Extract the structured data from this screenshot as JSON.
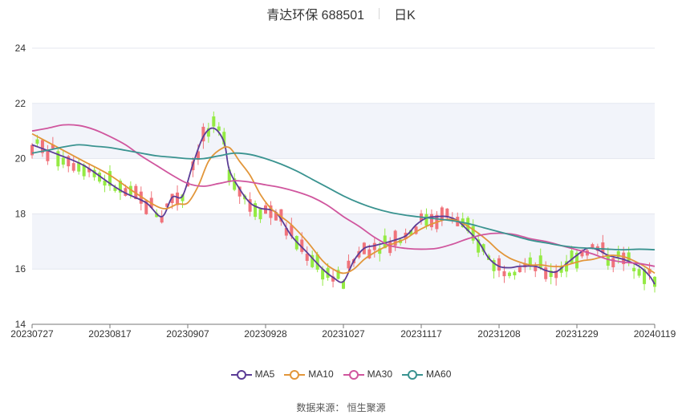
{
  "header": {
    "title": "青达环保 688501",
    "period": "日K"
  },
  "source": {
    "label": "数据来源：",
    "name": "恒生聚源"
  },
  "chart_data": {
    "type": "candlestick",
    "ylim": [
      14,
      24
    ],
    "yticks": [
      14,
      16,
      18,
      20,
      22,
      24
    ],
    "x_tick_labels": [
      "20230727",
      "20230817",
      "20230907",
      "20230928",
      "20231027",
      "20231117",
      "20231208",
      "20231229",
      "20240119"
    ],
    "x_tick_index": [
      0,
      15,
      30,
      45,
      60,
      75,
      90,
      105,
      120
    ],
    "candle_count": 121,
    "colors": {
      "up": "#f0737b",
      "down": "#94ea43"
    },
    "series": [
      {
        "name": "MA5",
        "color": "#5b3c96",
        "points": [
          [
            0,
            20.5
          ],
          [
            5,
            20.15
          ],
          [
            10,
            19.75
          ],
          [
            15,
            19.1
          ],
          [
            18,
            18.75
          ],
          [
            22,
            18.4
          ],
          [
            25,
            17.9
          ],
          [
            27,
            18.6
          ],
          [
            29,
            18.65
          ],
          [
            31,
            19.8
          ],
          [
            33,
            20.8
          ],
          [
            35,
            21.1
          ],
          [
            37,
            20.6
          ],
          [
            38,
            19.6
          ],
          [
            40,
            18.9
          ],
          [
            42,
            18.4
          ],
          [
            44,
            18.2
          ],
          [
            47,
            18.05
          ],
          [
            50,
            17.2
          ],
          [
            53,
            16.6
          ],
          [
            56,
            16.0
          ],
          [
            58,
            15.7
          ],
          [
            60,
            15.55
          ],
          [
            62,
            16.3
          ],
          [
            64,
            16.75
          ],
          [
            66,
            16.85
          ],
          [
            69,
            17.0
          ],
          [
            72,
            17.2
          ],
          [
            74,
            17.6
          ],
          [
            76,
            17.85
          ],
          [
            78,
            17.9
          ],
          [
            80,
            17.9
          ],
          [
            82,
            17.75
          ],
          [
            84,
            17.4
          ],
          [
            86,
            17.0
          ],
          [
            88,
            16.4
          ],
          [
            90,
            16.1
          ],
          [
            92,
            16.05
          ],
          [
            94,
            16.1
          ],
          [
            97,
            16.1
          ],
          [
            99,
            15.95
          ],
          [
            101,
            15.9
          ],
          [
            103,
            16.2
          ],
          [
            105,
            16.5
          ],
          [
            107,
            16.75
          ],
          [
            109,
            16.7
          ],
          [
            111,
            16.5
          ],
          [
            114,
            16.35
          ],
          [
            117,
            16.1
          ],
          [
            119,
            15.75
          ],
          [
            120,
            15.45
          ]
        ]
      },
      {
        "name": "MA10",
        "color": "#e2963a",
        "points": [
          [
            0,
            20.9
          ],
          [
            5,
            20.4
          ],
          [
            10,
            19.9
          ],
          [
            15,
            19.4
          ],
          [
            20,
            18.75
          ],
          [
            25,
            18.2
          ],
          [
            28,
            18.35
          ],
          [
            30,
            18.4
          ],
          [
            32,
            19.0
          ],
          [
            34,
            19.9
          ],
          [
            36,
            20.3
          ],
          [
            38,
            20.4
          ],
          [
            40,
            19.9
          ],
          [
            42,
            19.4
          ],
          [
            44,
            18.7
          ],
          [
            46,
            18.2
          ],
          [
            48,
            17.9
          ],
          [
            50,
            17.6
          ],
          [
            53,
            17.0
          ],
          [
            56,
            16.3
          ],
          [
            58,
            16.0
          ],
          [
            60,
            15.85
          ],
          [
            62,
            16.0
          ],
          [
            64,
            16.35
          ],
          [
            66,
            16.6
          ],
          [
            68,
            16.8
          ],
          [
            70,
            16.95
          ],
          [
            72,
            17.1
          ],
          [
            74,
            17.35
          ],
          [
            76,
            17.55
          ],
          [
            78,
            17.7
          ],
          [
            80,
            17.8
          ],
          [
            82,
            17.75
          ],
          [
            84,
            17.55
          ],
          [
            86,
            17.3
          ],
          [
            88,
            17.0
          ],
          [
            90,
            16.65
          ],
          [
            92,
            16.4
          ],
          [
            94,
            16.25
          ],
          [
            96,
            16.15
          ],
          [
            98,
            16.15
          ],
          [
            100,
            16.1
          ],
          [
            102,
            16.1
          ],
          [
            104,
            16.2
          ],
          [
            106,
            16.3
          ],
          [
            108,
            16.35
          ],
          [
            110,
            16.45
          ],
          [
            112,
            16.5
          ],
          [
            114,
            16.45
          ],
          [
            116,
            16.3
          ],
          [
            118,
            16.1
          ],
          [
            120,
            15.85
          ]
        ]
      },
      {
        "name": "MA30",
        "color": "#d0569e",
        "points": [
          [
            0,
            21.0
          ],
          [
            3,
            21.1
          ],
          [
            6,
            21.22
          ],
          [
            9,
            21.2
          ],
          [
            12,
            21.05
          ],
          [
            15,
            20.8
          ],
          [
            18,
            20.5
          ],
          [
            21,
            20.1
          ],
          [
            24,
            19.75
          ],
          [
            27,
            19.4
          ],
          [
            30,
            19.1
          ],
          [
            33,
            19.0
          ],
          [
            36,
            19.1
          ],
          [
            39,
            19.2
          ],
          [
            42,
            19.15
          ],
          [
            45,
            19.05
          ],
          [
            48,
            18.95
          ],
          [
            51,
            18.8
          ],
          [
            54,
            18.6
          ],
          [
            57,
            18.3
          ],
          [
            60,
            17.9
          ],
          [
            63,
            17.55
          ],
          [
            66,
            17.15
          ],
          [
            69,
            16.85
          ],
          [
            72,
            16.75
          ],
          [
            75,
            16.72
          ],
          [
            78,
            16.75
          ],
          [
            81,
            16.9
          ],
          [
            84,
            17.1
          ],
          [
            87,
            17.25
          ],
          [
            90,
            17.3
          ],
          [
            93,
            17.25
          ],
          [
            96,
            17.1
          ],
          [
            99,
            17.0
          ],
          [
            102,
            16.85
          ],
          [
            105,
            16.7
          ],
          [
            108,
            16.55
          ],
          [
            111,
            16.35
          ],
          [
            114,
            16.25
          ],
          [
            117,
            16.2
          ],
          [
            120,
            16.1
          ]
        ]
      },
      {
        "name": "MA60",
        "color": "#3a9390",
        "points": [
          [
            0,
            20.2
          ],
          [
            3,
            20.3
          ],
          [
            6,
            20.42
          ],
          [
            9,
            20.5
          ],
          [
            12,
            20.45
          ],
          [
            15,
            20.4
          ],
          [
            18,
            20.3
          ],
          [
            21,
            20.2
          ],
          [
            24,
            20.1
          ],
          [
            27,
            20.05
          ],
          [
            30,
            20.0
          ],
          [
            33,
            20.0
          ],
          [
            36,
            20.1
          ],
          [
            39,
            20.2
          ],
          [
            42,
            20.15
          ],
          [
            45,
            20.0
          ],
          [
            48,
            19.8
          ],
          [
            51,
            19.55
          ],
          [
            54,
            19.25
          ],
          [
            57,
            18.95
          ],
          [
            60,
            18.65
          ],
          [
            63,
            18.4
          ],
          [
            66,
            18.2
          ],
          [
            69,
            18.05
          ],
          [
            72,
            17.95
          ],
          [
            75,
            17.88
          ],
          [
            78,
            17.82
          ],
          [
            81,
            17.75
          ],
          [
            84,
            17.65
          ],
          [
            87,
            17.5
          ],
          [
            90,
            17.35
          ],
          [
            93,
            17.2
          ],
          [
            96,
            17.05
          ],
          [
            99,
            16.95
          ],
          [
            102,
            16.85
          ],
          [
            105,
            16.78
          ],
          [
            108,
            16.75
          ],
          [
            111,
            16.72
          ],
          [
            114,
            16.7
          ],
          [
            117,
            16.72
          ],
          [
            120,
            16.7
          ]
        ]
      }
    ]
  }
}
